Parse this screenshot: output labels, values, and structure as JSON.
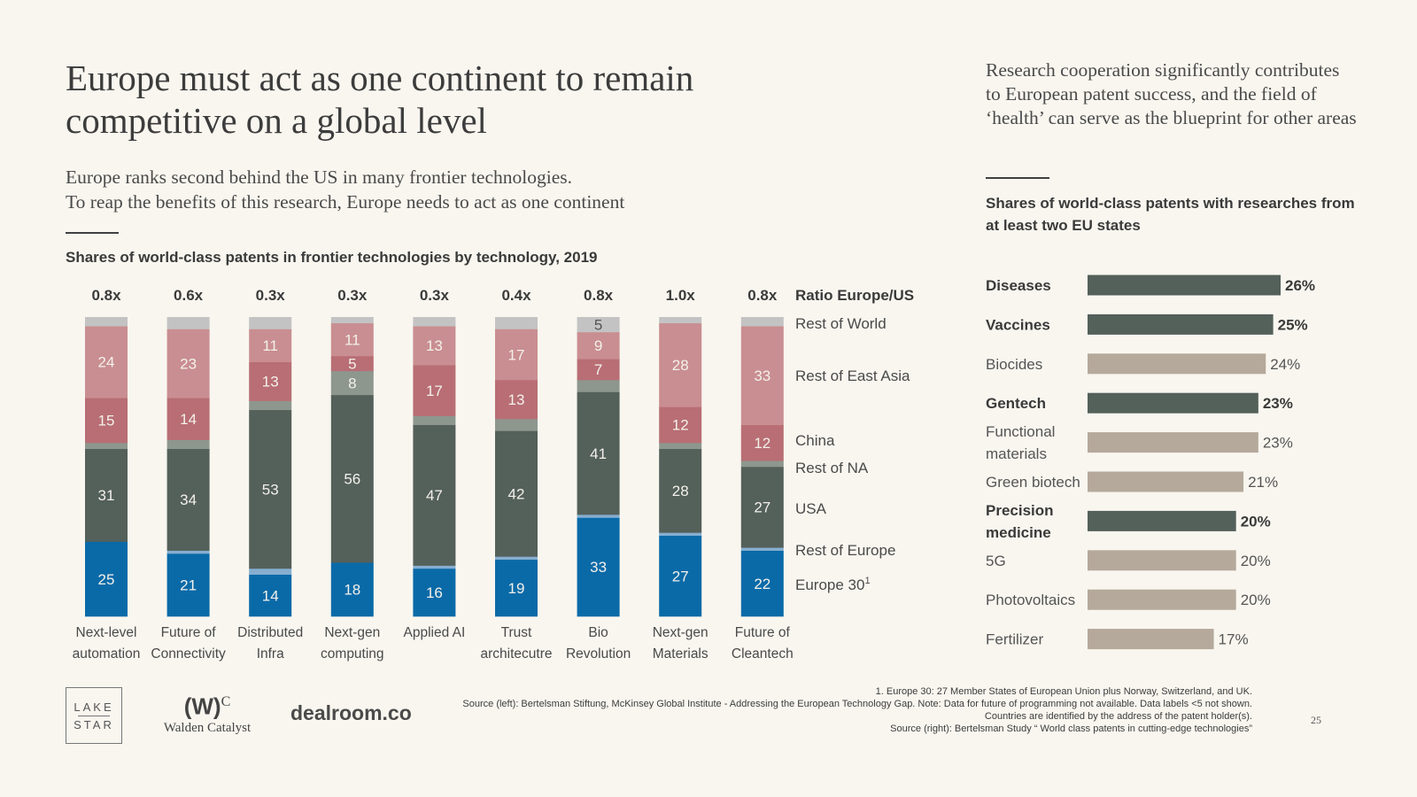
{
  "header": {
    "title": "Europe must act as one continent to remain competitive on a global level",
    "subtitle_line1": "Europe ranks second behind the US in many frontier technologies.",
    "subtitle_line2": "To reap the benefits of this research, Europe needs to act as one continent"
  },
  "right_panel": {
    "heading": "Research cooperation significantly contributes to European patent success, and the field of ‘health’ can serve as the blueprint for other areas"
  },
  "colors": {
    "europe30": "#0a6aa8",
    "rest_of_europe": "#86aed0",
    "usa": "#54605a",
    "rest_of_na": "#8d978e",
    "china": "#b86e74",
    "rest_of_east_asia": "#c98e91",
    "rest_of_world": "#c3c3c3",
    "highlight_bar": "#54605a",
    "normal_bar": "#b5a99b"
  },
  "chart_data": [
    {
      "type": "bar",
      "stacked": true,
      "title": "Shares of world-class patents in frontier technologies by technology, 2019",
      "ratio_label": "Ratio Europe/US",
      "ylim": [
        0,
        100
      ],
      "categories": [
        [
          "Next-level",
          "automation"
        ],
        [
          "Future of",
          "Connectivity"
        ],
        [
          "Distributed",
          "Infra"
        ],
        [
          "Next-gen",
          "computing"
        ],
        [
          "Applied AI",
          ""
        ],
        [
          "Trust",
          "architecutre"
        ],
        [
          "Bio",
          "Revolution"
        ],
        [
          "Next-gen",
          "Materials"
        ],
        [
          "Future of",
          "Cleantech"
        ]
      ],
      "ratios": [
        "0.8x",
        "0.6x",
        "0.3x",
        "0.3x",
        "0.3x",
        "0.4x",
        "0.8x",
        "1.0x",
        "0.8x"
      ],
      "series": [
        {
          "key": "europe30",
          "name": "Europe 30",
          "footnote_mark": "1",
          "values": [
            25,
            21,
            14,
            18,
            16,
            19,
            33,
            27,
            22
          ]
        },
        {
          "key": "rest_of_europe",
          "name": "Rest of Europe",
          "values": [
            0,
            1,
            2,
            0,
            1,
            1,
            1,
            1,
            1
          ]
        },
        {
          "key": "usa",
          "name": "USA",
          "values": [
            31,
            34,
            53,
            56,
            47,
            42,
            41,
            28,
            27
          ]
        },
        {
          "key": "rest_of_na",
          "name": "Rest of NA",
          "values": [
            2,
            3,
            3,
            8,
            3,
            4,
            4,
            2,
            2
          ]
        },
        {
          "key": "china",
          "name": "China",
          "values": [
            15,
            14,
            13,
            5,
            17,
            13,
            7,
            12,
            12
          ]
        },
        {
          "key": "rest_of_east_asia",
          "name": "Rest of East Asia",
          "values": [
            24,
            23,
            11,
            11,
            13,
            17,
            9,
            28,
            33
          ]
        },
        {
          "key": "rest_of_world",
          "name": "Rest of World",
          "values": [
            3,
            4,
            4,
            2,
            3,
            4,
            5,
            2,
            3
          ]
        }
      ],
      "data_label_min": 5,
      "legend": "right"
    },
    {
      "type": "bar",
      "orientation": "horizontal",
      "title": "Shares of world-class patents with researches from at least two EU states",
      "unit": "%",
      "xlim": [
        0,
        26
      ],
      "items": [
        {
          "label": [
            "Diseases"
          ],
          "value": 26,
          "highlight": true
        },
        {
          "label": [
            "Vaccines"
          ],
          "value": 25,
          "highlight": true
        },
        {
          "label": [
            "Biocides"
          ],
          "value": 24,
          "highlight": false
        },
        {
          "label": [
            "Gentech"
          ],
          "value": 23,
          "highlight": true
        },
        {
          "label": [
            "Functional",
            "materials"
          ],
          "value": 23,
          "highlight": false
        },
        {
          "label": [
            "Green biotech"
          ],
          "value": 21,
          "highlight": false
        },
        {
          "label": [
            "Precision",
            "medicine"
          ],
          "value": 20,
          "highlight": true
        },
        {
          "label": [
            "5G"
          ],
          "value": 20,
          "highlight": false
        },
        {
          "label": [
            "Photovoltaics"
          ],
          "value": 20,
          "highlight": false
        },
        {
          "label": [
            "Fertilizer"
          ],
          "value": 17,
          "highlight": false
        }
      ]
    }
  ],
  "footnotes": {
    "line1": "1.  Europe 30: 27 Member States of European Union plus Norway, Switzerland, and UK.",
    "line2": "Source (left): Bertelsman Stiftung, McKinsey Global Institute - Addressing the European Technology Gap. Note: Data for future of programming not available. Data labels <5 not shown.",
    "line3": "Countries are identified by the address of the patent holder(s).",
    "line4": "Source (right): Bertelsman Study “ World class patents in cutting-edge technologies”"
  },
  "page_number": "25",
  "logos": {
    "lake_star_top": "LAKE",
    "lake_star_bottom": "STAR",
    "walden_mark": "(W)",
    "walden_sup": "C",
    "walden_name": "Walden Catalyst",
    "dealroom": "dealroom.co"
  }
}
